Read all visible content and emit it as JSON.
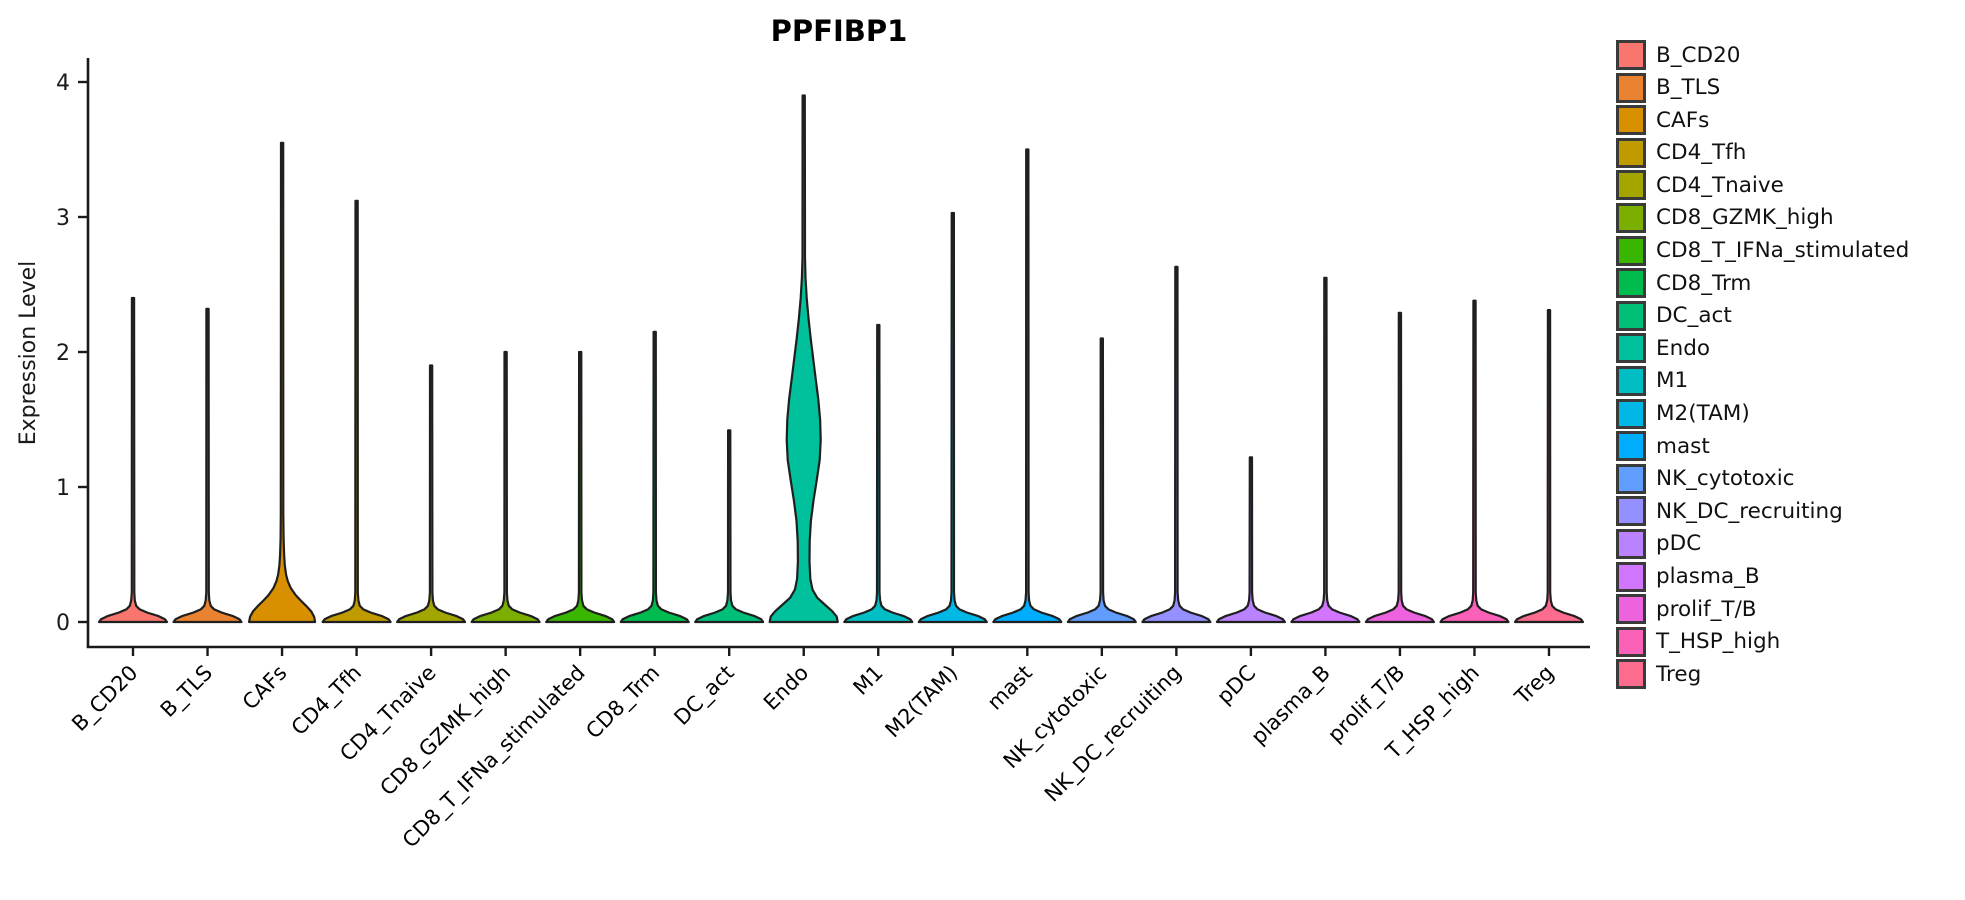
{
  "chart_data": {
    "type": "violin",
    "title": "PPFIBP1",
    "ylabel": "Expression Level",
    "ylim": [
      0,
      4.15
    ],
    "yticks": [
      "0",
      "1",
      "2",
      "3",
      "4"
    ],
    "grid": false,
    "legend_position": "right",
    "axis_color": "#1a1a1a",
    "violin_outline_color": "#1f1f1f",
    "categories": [
      "B_CD20",
      "B_TLS",
      "CAFs",
      "CD4_Tfh",
      "CD4_Tnaive",
      "CD8_GZMK_high",
      "CD8_T_IFNa_stimulated",
      "CD8_Trm",
      "DC_act",
      "Endo",
      "M1",
      "M2(TAM)",
      "mast",
      "NK_cytotoxic",
      "NK_DC_recruiting",
      "pDC",
      "plasma_B",
      "prolif_T/B",
      "T_HSP_high",
      "Treg"
    ],
    "violins": [
      {
        "label": "B_CD20",
        "color": "#F8766D",
        "max": 2.4,
        "profile": "flat"
      },
      {
        "label": "B_TLS",
        "color": "#EA8331",
        "max": 2.32,
        "profile": "flat"
      },
      {
        "label": "CAFs",
        "color": "#D89000",
        "max": 3.55,
        "profile": "cafs"
      },
      {
        "label": "CD4_Tfh",
        "color": "#C09B00",
        "max": 3.12,
        "profile": "flat"
      },
      {
        "label": "CD4_Tnaive",
        "color": "#A3A500",
        "max": 1.9,
        "profile": "flat"
      },
      {
        "label": "CD8_GZMK_high",
        "color": "#7CAE00",
        "max": 2.0,
        "profile": "flat"
      },
      {
        "label": "CD8_T_IFNa_stimulated",
        "color": "#39B600",
        "max": 2.0,
        "profile": "flat"
      },
      {
        "label": "CD8_Trm",
        "color": "#00BB4E",
        "max": 2.15,
        "profile": "flat"
      },
      {
        "label": "DC_act",
        "color": "#00C079",
        "max": 1.42,
        "profile": "flat"
      },
      {
        "label": "Endo",
        "color": "#00C19C",
        "max": 3.9,
        "profile": "endo"
      },
      {
        "label": "M1",
        "color": "#00BFC4",
        "max": 2.2,
        "profile": "flat"
      },
      {
        "label": "M2(TAM)",
        "color": "#00B8E5",
        "max": 3.03,
        "profile": "flat"
      },
      {
        "label": "mast",
        "color": "#00ACFC",
        "max": 3.5,
        "profile": "flat"
      },
      {
        "label": "NK_cytotoxic",
        "color": "#619CFF",
        "max": 2.1,
        "profile": "flat"
      },
      {
        "label": "NK_DC_recruiting",
        "color": "#9590FF",
        "max": 2.63,
        "profile": "flat"
      },
      {
        "label": "pDC",
        "color": "#B983FF",
        "max": 1.22,
        "profile": "flat"
      },
      {
        "label": "plasma_B",
        "color": "#D376FF",
        "max": 2.55,
        "profile": "flat"
      },
      {
        "label": "prolif_T/B",
        "color": "#ED63DF",
        "max": 2.29,
        "profile": "flat"
      },
      {
        "label": "T_HSP_high",
        "color": "#FB61B7",
        "max": 2.38,
        "profile": "flat"
      },
      {
        "label": "Treg",
        "color": "#FD6C8E",
        "max": 2.31,
        "profile": "flat"
      }
    ],
    "profiles": {
      "flat": [
        [
          0,
          34
        ],
        [
          0.02,
          32
        ],
        [
          0.045,
          25
        ],
        [
          0.07,
          14
        ],
        [
          0.095,
          6.5
        ],
        [
          0.12,
          3.2
        ],
        [
          0.16,
          1.8
        ],
        [
          0.22,
          1.25
        ]
      ],
      "cafs": [
        [
          0,
          33
        ],
        [
          0.04,
          32
        ],
        [
          0.08,
          29
        ],
        [
          0.12,
          24
        ],
        [
          0.16,
          18.5
        ],
        [
          0.2,
          13.5
        ],
        [
          0.25,
          8.8
        ],
        [
          0.3,
          5.8
        ],
        [
          0.35,
          4.0
        ],
        [
          0.42,
          2.7
        ],
        [
          0.5,
          2.0
        ],
        [
          0.62,
          1.5
        ],
        [
          0.8,
          1.25
        ]
      ],
      "endo": [
        [
          0,
          34
        ],
        [
          0.04,
          33
        ],
        [
          0.08,
          28.5
        ],
        [
          0.13,
          21
        ],
        [
          0.18,
          13.5
        ],
        [
          0.24,
          8.8
        ],
        [
          0.32,
          6.6
        ],
        [
          0.45,
          5.8
        ],
        [
          0.6,
          6.0
        ],
        [
          0.75,
          7.2
        ],
        [
          0.9,
          9.8
        ],
        [
          1.05,
          13
        ],
        [
          1.2,
          16
        ],
        [
          1.35,
          17
        ],
        [
          1.5,
          16.4
        ],
        [
          1.65,
          14.6
        ],
        [
          1.8,
          12
        ],
        [
          1.95,
          9.5
        ],
        [
          2.1,
          7.0
        ],
        [
          2.25,
          4.8
        ],
        [
          2.4,
          3.0
        ],
        [
          2.55,
          1.8
        ],
        [
          2.7,
          1.25
        ]
      ]
    }
  }
}
